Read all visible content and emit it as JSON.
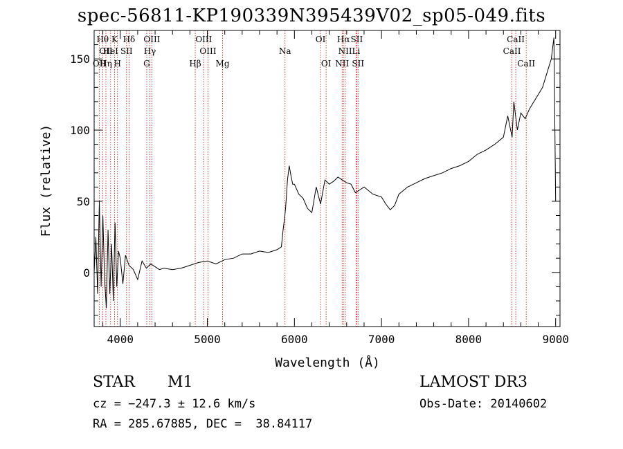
{
  "chart_data": {
    "type": "line",
    "title": "spec-56811-KP190339N395439V02_sp05-049.fits",
    "xlabel": "Wavelength (Å)",
    "ylabel": "Flux (relative)",
    "xlim": [
      3700,
      9050
    ],
    "ylim": [
      -38,
      170
    ],
    "xticks": [
      4000,
      5000,
      6000,
      7000,
      8000,
      9000
    ],
    "yticks": [
      0,
      50,
      100,
      150
    ],
    "grid": false,
    "series": [
      {
        "x": [
          3700,
          3720,
          3740,
          3760,
          3780,
          3800,
          3820,
          3840,
          3860,
          3880,
          3900,
          3920,
          3940,
          3960,
          3980,
          4000,
          4030,
          4060,
          4100,
          4150,
          4200,
          4250,
          4300,
          4350,
          4400,
          4450,
          4500,
          4600,
          4700,
          4800,
          4900,
          5000,
          5100,
          5200,
          5300,
          5400,
          5500,
          5600,
          5700,
          5800,
          5850,
          5870,
          5890,
          5900,
          5920,
          5940,
          5960,
          5980,
          6000,
          6050,
          6100,
          6150,
          6200,
          6250,
          6300,
          6350,
          6400,
          6450,
          6500,
          6550,
          6600,
          6650,
          6700,
          6750,
          6800,
          6900,
          7000,
          7050,
          7100,
          7150,
          7200,
          7300,
          7400,
          7500,
          7600,
          7700,
          7800,
          7900,
          8000,
          8100,
          8200,
          8300,
          8400,
          8450,
          8500,
          8520,
          8560,
          8600,
          8650,
          8700,
          8750,
          8800,
          8850,
          8900,
          8950,
          8980,
          9000
        ],
        "y": [
          0,
          25,
          -15,
          50,
          -10,
          40,
          -5,
          -25,
          30,
          -15,
          20,
          -20,
          35,
          -10,
          15,
          10,
          -8,
          12,
          5,
          2,
          -5,
          8,
          3,
          6,
          4,
          2,
          3,
          2,
          3,
          5,
          7,
          8,
          6,
          9,
          10,
          13,
          13,
          15,
          14,
          16,
          18,
          30,
          40,
          46,
          65,
          75,
          68,
          62,
          62,
          55,
          52,
          45,
          42,
          60,
          48,
          65,
          62,
          64,
          67,
          65,
          63,
          62,
          56,
          58,
          60,
          55,
          53,
          48,
          44,
          47,
          55,
          60,
          63,
          66,
          68,
          70,
          73,
          75,
          78,
          83,
          86,
          90,
          95,
          110,
          95,
          120,
          100,
          112,
          108,
          115,
          120,
          125,
          130,
          140,
          150,
          165,
          50
        ]
      }
    ],
    "annotations": {
      "upper": [
        {
          "x": 3798,
          "row": 0,
          "text": "Hθ"
        },
        {
          "x": 3835,
          "row": 1,
          "text": "OII"
        },
        {
          "x": 3889,
          "row": 1,
          "text": "HeI"
        },
        {
          "x": 3934,
          "row": 0,
          "text": "K"
        },
        {
          "x": 4101,
          "row": 0,
          "text": "Hδ"
        },
        {
          "x": 4072,
          "row": 1,
          "text": "SII"
        },
        {
          "x": 4363,
          "row": 0,
          "text": "OIII"
        },
        {
          "x": 4340,
          "row": 1,
          "text": "Hγ"
        },
        {
          "x": 4959,
          "row": 0,
          "text": "OIII"
        },
        {
          "x": 5007,
          "row": 1,
          "text": "OIII"
        },
        {
          "x": 5892,
          "row": 1,
          "text": "Na"
        },
        {
          "x": 6300,
          "row": 0,
          "text": "OI"
        },
        {
          "x": 6563,
          "row": 0,
          "text": "Hα"
        },
        {
          "x": 6583,
          "row": 1,
          "text": "NII"
        },
        {
          "x": 6716,
          "row": 0,
          "text": "SII"
        },
        {
          "x": 6708,
          "row": 1,
          "text": "Li"
        },
        {
          "x": 8542,
          "row": 0,
          "text": "CaII"
        },
        {
          "x": 8498,
          "row": 1,
          "text": "CaII"
        }
      ],
      "lower": [
        {
          "x": 3760,
          "row": 0,
          "text": "OII"
        },
        {
          "x": 3835,
          "row": 0,
          "text": "Hη"
        },
        {
          "x": 3968,
          "row": 0,
          "text": "H"
        },
        {
          "x": 4304,
          "row": 0,
          "text": "G"
        },
        {
          "x": 4861,
          "row": 0,
          "text": "Hβ"
        },
        {
          "x": 5175,
          "row": 0,
          "text": "Mg"
        },
        {
          "x": 6364,
          "row": 0,
          "text": "OI"
        },
        {
          "x": 6548,
          "row": 0,
          "text": "NII"
        },
        {
          "x": 6731,
          "row": 0,
          "text": "SII"
        },
        {
          "x": 8662,
          "row": 0,
          "text": "CaII"
        }
      ],
      "line_x": [
        3760,
        3798,
        3835,
        3889,
        3934,
        3968,
        4072,
        4101,
        4304,
        4340,
        4363,
        4861,
        4959,
        5007,
        5175,
        5892,
        6300,
        6364,
        6548,
        6563,
        6583,
        6708,
        6716,
        6731,
        8498,
        8542,
        8662
      ]
    }
  },
  "info": {
    "object_class": "STAR",
    "subclass": "M1",
    "survey": "LAMOST DR3",
    "cz": "cz = −247.3 ± 12.6 km/s",
    "obs_date": "Obs-Date: 20140602",
    "radec": "RA = 285.67885, DEC =  38.84117"
  },
  "colors": {
    "axis": "#000000",
    "spectrum": "#000000",
    "line_marker": "#cc2a1e"
  }
}
